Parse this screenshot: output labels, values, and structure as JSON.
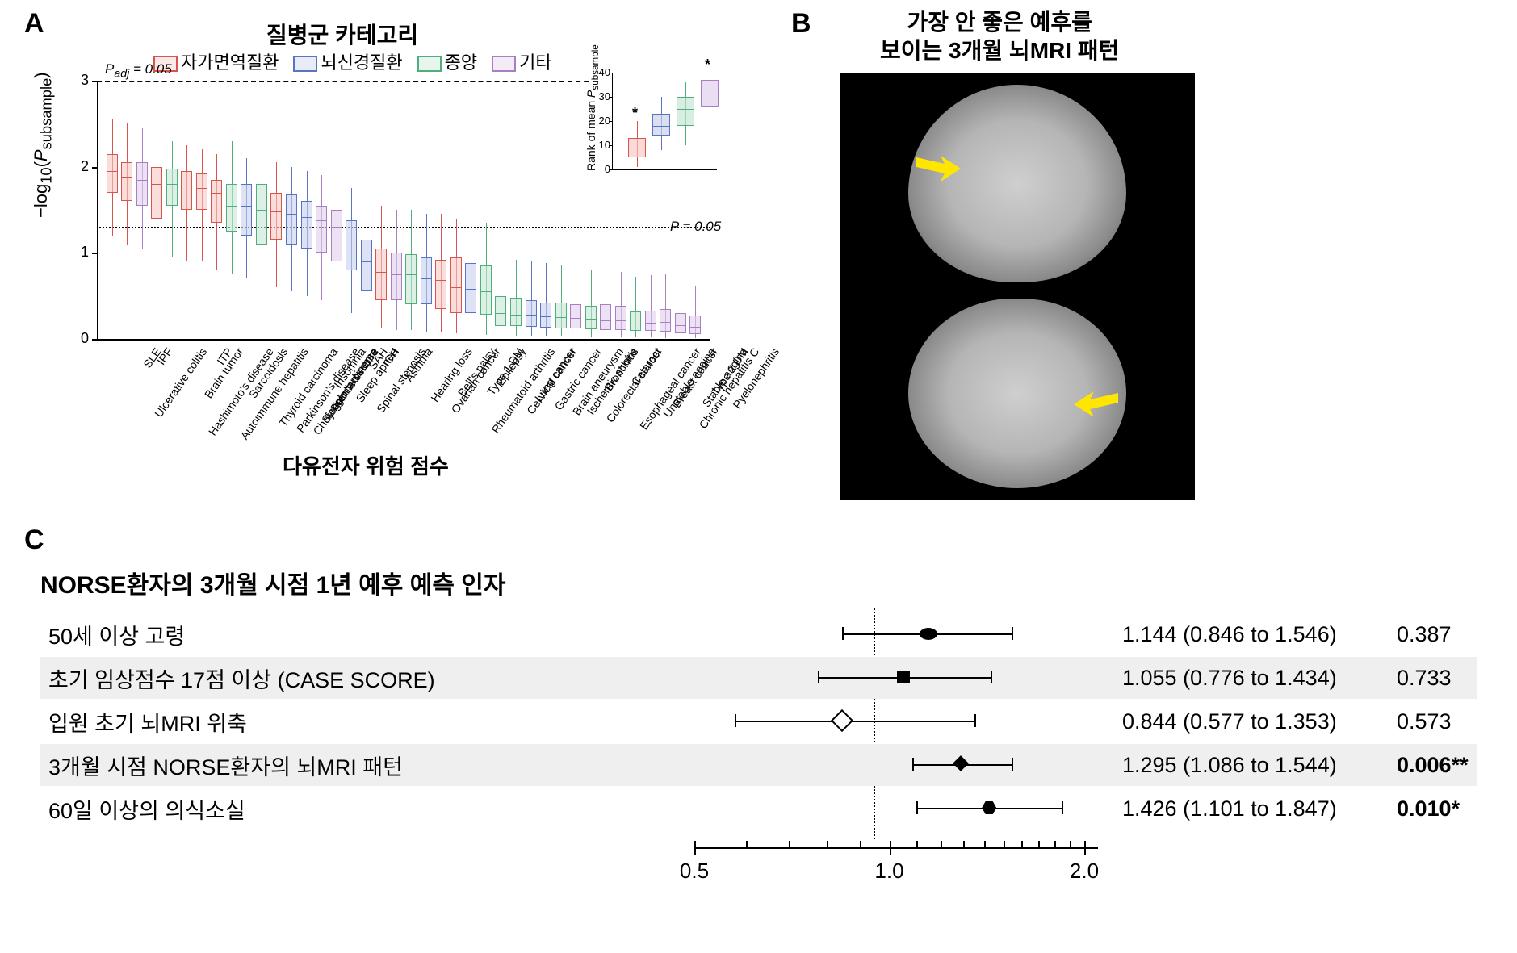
{
  "panel_labels": {
    "A": "A",
    "B": "B",
    "C": "C"
  },
  "panelA": {
    "title": "질병군 카테고리",
    "y_axis_label": "−log₁₀(𝑃_subsample)",
    "x_axis_title": "다유전자 위험 점수",
    "y_ticks": [
      0,
      1,
      2,
      3
    ],
    "hline_padj": {
      "y": 3.0,
      "label": "𝑃_adj = 0.05",
      "style": "dashed"
    },
    "hline_p": {
      "y": 1.3,
      "label": "𝑃 = 0.05",
      "style": "dotted"
    },
    "categories": {
      "autoimmune": {
        "label": "자가면역질환",
        "stroke": "#d9544d",
        "fill": "#f6c8c5"
      },
      "neuro": {
        "label": "뇌신경질환",
        "stroke": "#5a74c4",
        "fill": "#c7d0ec"
      },
      "tumor": {
        "label": "종양",
        "stroke": "#4fae7a",
        "fill": "#c5e6d4"
      },
      "other": {
        "label": "기타",
        "stroke": "#a87fc2",
        "fill": "#e0cfec"
      }
    },
    "diseases": [
      {
        "name": "Ulcerative colitis",
        "cat": "autoimmune",
        "wlo": 1.2,
        "q1": 1.7,
        "med": 1.95,
        "q3": 2.15,
        "whi": 2.55
      },
      {
        "name": "SLE",
        "cat": "autoimmune",
        "wlo": 1.1,
        "q1": 1.6,
        "med": 1.88,
        "q3": 2.05,
        "whi": 2.5
      },
      {
        "name": "IPF",
        "cat": "other",
        "wlo": 1.05,
        "q1": 1.55,
        "med": 1.85,
        "q3": 2.05,
        "whi": 2.45
      },
      {
        "name": "Hashimoto's disease",
        "cat": "autoimmune",
        "wlo": 1.0,
        "q1": 1.4,
        "med": 1.8,
        "q3": 2.0,
        "whi": 2.35
      },
      {
        "name": "Brain tumor",
        "cat": "tumor",
        "wlo": 0.95,
        "q1": 1.55,
        "med": 1.8,
        "q3": 1.98,
        "whi": 2.3
      },
      {
        "name": "Autoimmune hepatitis",
        "cat": "autoimmune",
        "wlo": 0.9,
        "q1": 1.5,
        "med": 1.78,
        "q3": 1.95,
        "whi": 2.25
      },
      {
        "name": "ITP",
        "cat": "autoimmune",
        "wlo": 0.9,
        "q1": 1.5,
        "med": 1.75,
        "q3": 1.92,
        "whi": 2.2
      },
      {
        "name": "Sarcoidosis",
        "cat": "autoimmune",
        "wlo": 0.8,
        "q1": 1.35,
        "med": 1.7,
        "q3": 1.85,
        "whi": 2.15
      },
      {
        "name": "Thyroid carcinoma",
        "cat": "tumor",
        "wlo": 0.75,
        "q1": 1.25,
        "med": 1.55,
        "q3": 1.8,
        "whi": 2.3
      },
      {
        "name": "Parkinson's disease",
        "cat": "neuro",
        "wlo": 0.7,
        "q1": 1.2,
        "med": 1.55,
        "q3": 1.8,
        "whi": 2.1
      },
      {
        "name": "Cholangiocarcinoma",
        "cat": "tumor",
        "wlo": 0.65,
        "q1": 1.1,
        "med": 1.5,
        "q3": 1.8,
        "whi": 2.1
      },
      {
        "name": "Sjogren's disease",
        "cat": "autoimmune",
        "wlo": 0.6,
        "q1": 1.15,
        "med": 1.48,
        "q3": 1.7,
        "whi": 2.05
      },
      {
        "name": "Febrile seizure",
        "cat": "neuro",
        "wlo": 0.55,
        "q1": 1.1,
        "med": 1.45,
        "q3": 1.68,
        "whi": 2.0
      },
      {
        "name": "Insomnia",
        "cat": "neuro",
        "wlo": 0.5,
        "q1": 1.05,
        "med": 1.42,
        "q3": 1.6,
        "whi": 1.95
      },
      {
        "name": "Sleep apnea",
        "cat": "other",
        "wlo": 0.45,
        "q1": 1.0,
        "med": 1.38,
        "q3": 1.55,
        "whi": 1.9
      },
      {
        "name": "Spinal stenosis",
        "cat": "other",
        "wlo": 0.4,
        "q1": 0.9,
        "med": 1.3,
        "q3": 1.5,
        "whi": 1.85
      },
      {
        "name": "SAH",
        "cat": "neuro",
        "wlo": 0.3,
        "q1": 0.8,
        "med": 1.15,
        "q3": 1.38,
        "whi": 1.75
      },
      {
        "name": "ICH",
        "cat": "neuro",
        "wlo": 0.15,
        "q1": 0.55,
        "med": 0.9,
        "q3": 1.15,
        "whi": 1.6
      },
      {
        "name": "Asthma",
        "cat": "autoimmune",
        "wlo": 0.12,
        "q1": 0.45,
        "med": 0.78,
        "q3": 1.05,
        "whi": 1.55
      },
      {
        "name": "Hearing loss",
        "cat": "other",
        "wlo": 0.1,
        "q1": 0.45,
        "med": 0.75,
        "q3": 1.0,
        "whi": 1.5
      },
      {
        "name": "Ovarian cancer",
        "cat": "tumor",
        "wlo": 0.1,
        "q1": 0.4,
        "med": 0.75,
        "q3": 0.98,
        "whi": 1.5
      },
      {
        "name": "Bell's palsy",
        "cat": "neuro",
        "wlo": 0.08,
        "q1": 0.4,
        "med": 0.7,
        "q3": 0.95,
        "whi": 1.45
      },
      {
        "name": "Rheumatoid arthritis",
        "cat": "autoimmune",
        "wlo": 0.08,
        "q1": 0.35,
        "med": 0.68,
        "q3": 0.92,
        "whi": 1.45
      },
      {
        "name": "Type 1 DM",
        "cat": "autoimmune",
        "wlo": 0.07,
        "q1": 0.3,
        "med": 0.6,
        "q3": 0.95,
        "whi": 1.4
      },
      {
        "name": "Epilepsy",
        "cat": "neuro",
        "wlo": 0.06,
        "q1": 0.3,
        "med": 0.58,
        "q3": 0.88,
        "whi": 1.35
      },
      {
        "name": "Cervical cancer",
        "cat": "tumor",
        "wlo": 0.05,
        "q1": 0.28,
        "med": 0.55,
        "q3": 0.85,
        "whi": 1.35
      },
      {
        "name": "Lung cancer",
        "cat": "tumor",
        "wlo": 0.04,
        "q1": 0.15,
        "med": 0.3,
        "q3": 0.5,
        "whi": 0.95
      },
      {
        "name": "Gastric cancer",
        "cat": "tumor",
        "wlo": 0.04,
        "q1": 0.15,
        "med": 0.28,
        "q3": 0.48,
        "whi": 0.92
      },
      {
        "name": "Brain aneurysm",
        "cat": "neuro",
        "wlo": 0.03,
        "q1": 0.14,
        "med": 0.28,
        "q3": 0.45,
        "whi": 0.9
      },
      {
        "name": "Ischemic stroke",
        "cat": "neuro",
        "wlo": 0.03,
        "q1": 0.13,
        "med": 0.26,
        "q3": 0.42,
        "whi": 0.88
      },
      {
        "name": "Colorectal cancer",
        "cat": "tumor",
        "wlo": 0.03,
        "q1": 0.12,
        "med": 0.25,
        "q3": 0.42,
        "whi": 0.85
      },
      {
        "name": "Bronchitis",
        "cat": "other",
        "wlo": 0.02,
        "q1": 0.12,
        "med": 0.24,
        "q3": 0.4,
        "whi": 0.82
      },
      {
        "name": "Esophageal cancer",
        "cat": "tumor",
        "wlo": 0.02,
        "q1": 0.11,
        "med": 0.23,
        "q3": 0.38,
        "whi": 0.8
      },
      {
        "name": "Cataract",
        "cat": "other",
        "wlo": 0.02,
        "q1": 0.1,
        "med": 0.22,
        "q3": 0.4,
        "whi": 0.8
      },
      {
        "name": "Unstable angina",
        "cat": "other",
        "wlo": 0.02,
        "q1": 0.1,
        "med": 0.22,
        "q3": 0.38,
        "whi": 0.78
      },
      {
        "name": "Breast cancer",
        "cat": "tumor",
        "wlo": 0.02,
        "q1": 0.09,
        "med": 0.18,
        "q3": 0.32,
        "whi": 0.72
      },
      {
        "name": "Chronic hepatitis C",
        "cat": "other",
        "wlo": 0.02,
        "q1": 0.09,
        "med": 0.19,
        "q3": 0.33,
        "whi": 0.74
      },
      {
        "name": "Stable angina",
        "cat": "other",
        "wlo": 0.01,
        "q1": 0.08,
        "med": 0.2,
        "q3": 0.35,
        "whi": 0.75
      },
      {
        "name": "Type 2 DM",
        "cat": "other",
        "wlo": 0.01,
        "q1": 0.07,
        "med": 0.16,
        "q3": 0.3,
        "whi": 0.68
      },
      {
        "name": "Pyelonephritis",
        "cat": "other",
        "wlo": 0.01,
        "q1": 0.06,
        "med": 0.14,
        "q3": 0.27,
        "whi": 0.62
      }
    ],
    "inset": {
      "y_label": "Rank of mean 𝑃_subsample",
      "y_ticks": [
        0,
        10,
        20,
        30,
        40
      ],
      "series": [
        {
          "cat": "autoimmune",
          "wlo": 1,
          "q1": 5,
          "med": 7,
          "q3": 13,
          "whi": 20,
          "star": true
        },
        {
          "cat": "neuro",
          "wlo": 8,
          "q1": 14,
          "med": 18,
          "q3": 23,
          "whi": 30,
          "star": false
        },
        {
          "cat": "tumor",
          "wlo": 10,
          "q1": 18,
          "med": 25,
          "q3": 30,
          "whi": 36,
          "star": false
        },
        {
          "cat": "other",
          "wlo": 15,
          "q1": 26,
          "med": 33,
          "q3": 37,
          "whi": 40,
          "star": true
        }
      ]
    }
  },
  "panelB": {
    "title_line1": "가장 안 좋은 예후를",
    "title_line2": "보이는 3개월 뇌MRI 패턴",
    "arrow_color": "#ffe600"
  },
  "panelC": {
    "title": "NORSE환자의 3개월 시점 1년 예후 예측 인자",
    "plot": {
      "x_min_log": -1.0,
      "x_max_log": 1.1,
      "ref": 1.0,
      "axis_ticks": [
        0.5,
        1.0,
        2.0
      ],
      "minor_ticks": [
        0.6,
        0.7,
        0.8,
        0.9,
        1.1,
        1.2,
        1.3,
        1.4,
        1.5,
        1.6,
        1.7,
        1.8,
        1.9
      ]
    },
    "rows": [
      {
        "label": "50세 이상 고령",
        "hr_text": "1.144 (0.846 to 1.546)",
        "p_text": "0.387",
        "p_bold": false,
        "lo": 0.846,
        "pt": 1.144,
        "hi": 1.546,
        "marker": "oval",
        "shaded": false
      },
      {
        "label": "초기 임상점수 17점 이상 (CASE SCORE)",
        "hr_text": "1.055 (0.776 to 1.434)",
        "p_text": "0.733",
        "p_bold": false,
        "lo": 0.776,
        "pt": 1.055,
        "hi": 1.434,
        "marker": "square",
        "shaded": true
      },
      {
        "label": "입원 초기 뇌MRI 위축",
        "hr_text": "0.844 (0.577 to 1.353)",
        "p_text": "0.573",
        "p_bold": false,
        "lo": 0.577,
        "pt": 0.844,
        "hi": 1.353,
        "marker": "odiamond",
        "shaded": false
      },
      {
        "label": "3개월 시점 NORSE환자의 뇌MRI 패턴",
        "hr_text": "1.295 (1.086 to 1.544)",
        "p_text": "0.006**",
        "p_bold": true,
        "lo": 1.086,
        "pt": 1.295,
        "hi": 1.544,
        "marker": "fdiamond",
        "shaded": true
      },
      {
        "label": "60일 이상의 의식소실",
        "hr_text": "1.426 (1.101 to 1.847)",
        "p_text": "0.010*",
        "p_bold": true,
        "lo": 1.101,
        "pt": 1.426,
        "hi": 1.847,
        "marker": "hex",
        "shaded": false
      }
    ]
  }
}
